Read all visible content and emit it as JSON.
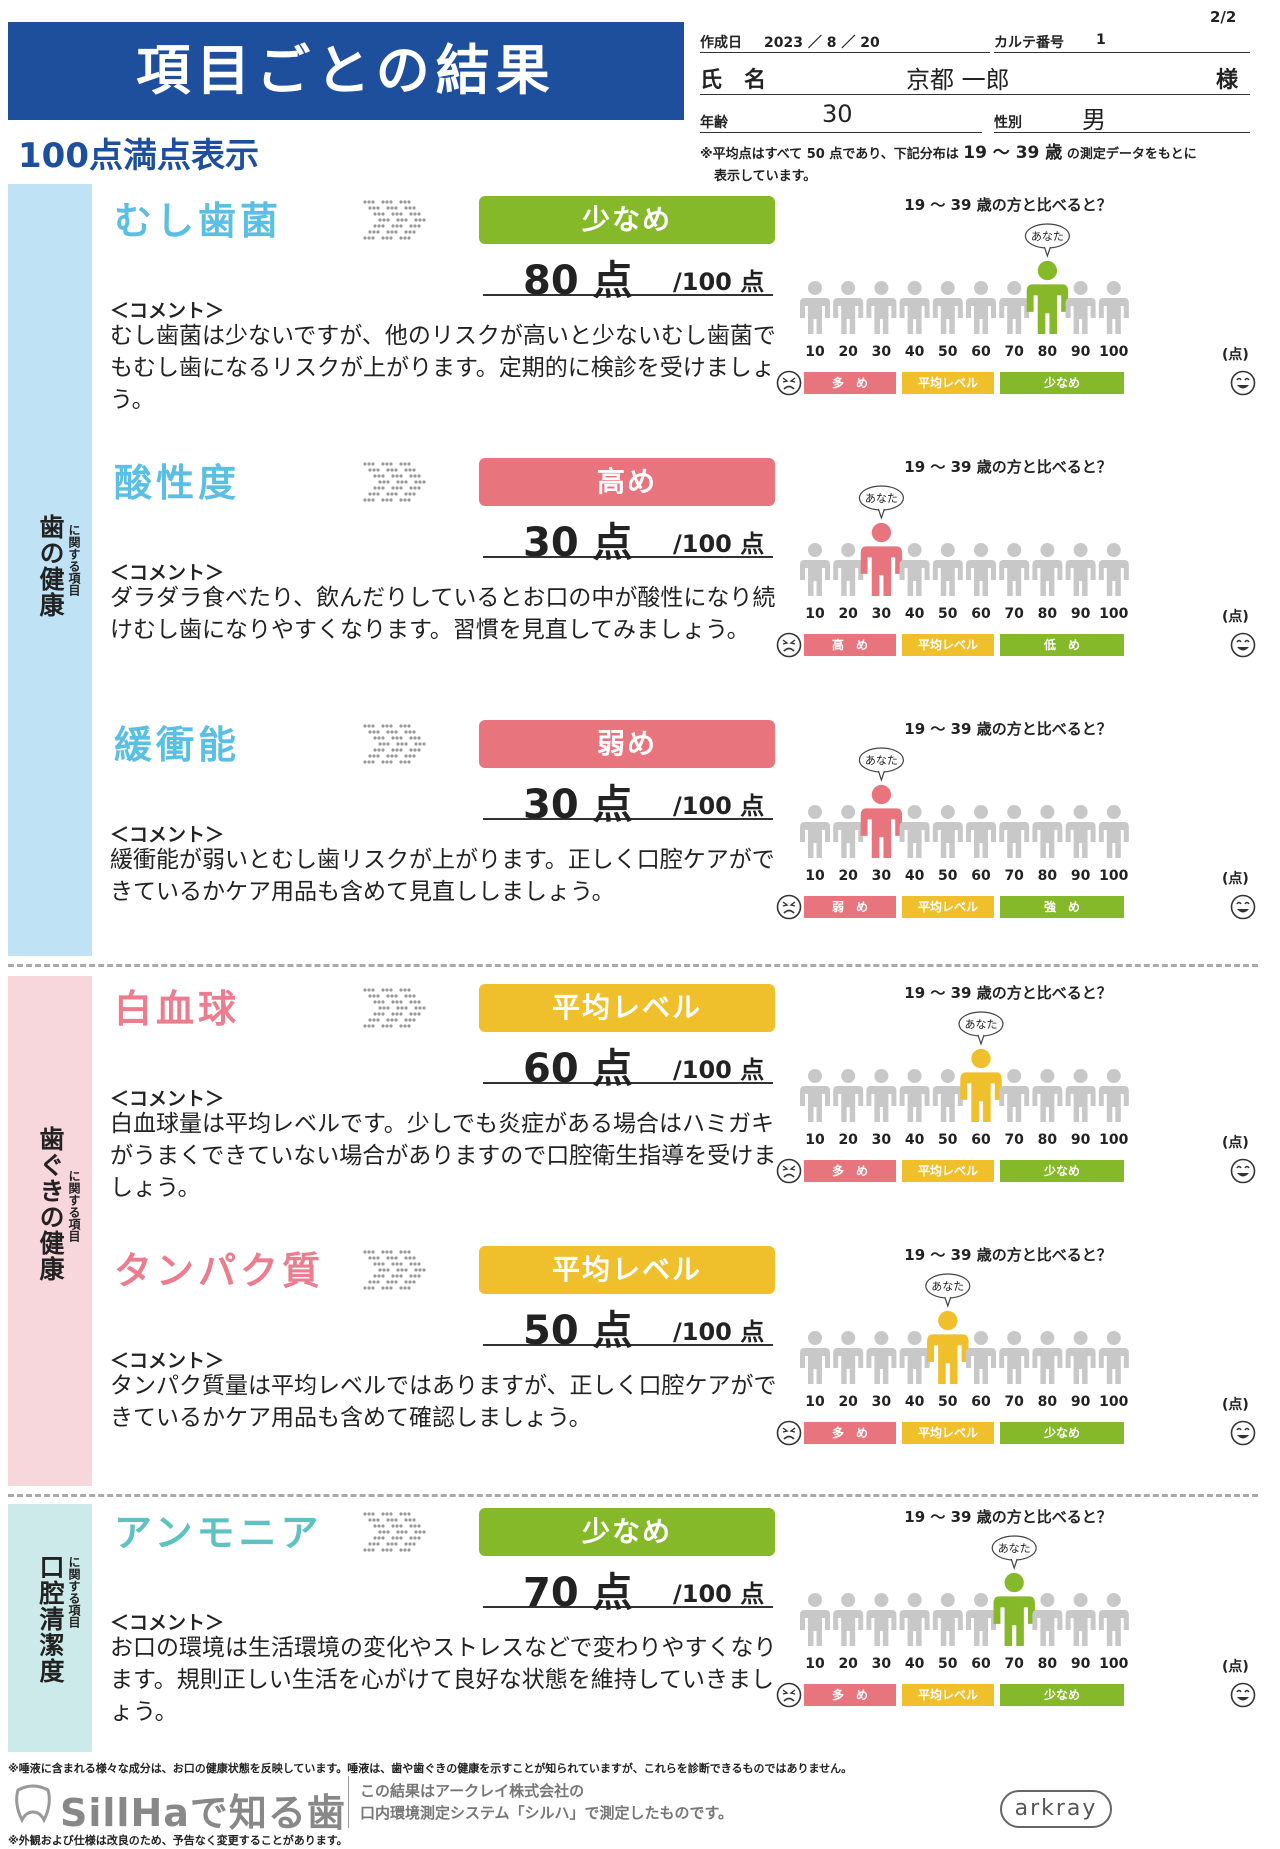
{
  "page_number": "2/2",
  "header": {
    "title": "項目ごとの結果",
    "subtitle": "100点満点表示",
    "created_label": "作成日",
    "created_date": "2023 ／ 8 ／ 20",
    "chart_no_label": "カルテ番号",
    "chart_no": "1",
    "name_label": "氏　名",
    "name": "京都 一郎",
    "honorific": "様",
    "age_label": "年齢",
    "age": "30",
    "sex_label": "性別",
    "sex": "男",
    "note_part1": "※平均点はすべて 50 点であり、下記分布は",
    "note_range": "19 〜 39 歳",
    "note_part2": "の測定データをもとに",
    "note_line2": "表示しています。"
  },
  "categories": [
    {
      "main": "歯の健康",
      "sub": "に関する項目",
      "color": "#bfe2f5"
    },
    {
      "main": "歯ぐきの健康",
      "sub": "に関する項目",
      "color": "#f7d6dc"
    },
    {
      "main": "口腔清潔度",
      "sub": "に関する項目",
      "color": "#cdeaea"
    }
  ],
  "common": {
    "chart_question": "19 〜 39 歳の方と比べると？",
    "you_label": "あなた",
    "score_unit": "/100 点",
    "comment_label": "＜コメント＞",
    "point_unit": "(点)",
    "ticks": [
      "10",
      "20",
      "30",
      "40",
      "50",
      "60",
      "70",
      "80",
      "90",
      "100"
    ],
    "middle_label": "平均レベル"
  },
  "sections": [
    {
      "name": "むし歯菌",
      "name_color": "#5bbfe3",
      "level": "少なめ",
      "level_color": "#86b929",
      "score": "80 点",
      "score_value": 80,
      "comment": "むし歯菌は少ないですが、他のリスクが高いと少ないむし歯菌でもむし歯になるリスクが上がります。定期的に検診を受けましょう。",
      "left_label": "多　め",
      "right_label": "少なめ"
    },
    {
      "name": "酸性度",
      "name_color": "#5bbfe3",
      "level": "高め",
      "level_color": "#e8757e",
      "score": "30 点",
      "score_value": 30,
      "comment": "ダラダラ食べたり、飲んだりしているとお口の中が酸性になり続けむし歯になりやすくなります。習慣を見直してみましょう。",
      "left_label": "高　め",
      "right_label": "低　め"
    },
    {
      "name": "緩衝能",
      "name_color": "#5bbfe3",
      "level": "弱め",
      "level_color": "#e8757e",
      "score": "30 点",
      "score_value": 30,
      "comment": "緩衝能が弱いとむし歯リスクが上がります。正しく口腔ケアができているかケア用品も含めて見直ししましょう。",
      "left_label": "弱　め",
      "right_label": "強　め"
    },
    {
      "name": "白血球",
      "name_color": "#ec7d8f",
      "level": "平均レベル",
      "level_color": "#efbf2c",
      "score": "60 点",
      "score_value": 60,
      "comment": "白血球量は平均レベルです。少しでも炎症がある場合はハミガキがうまくできていない場合がありますので口腔衛生指導を受けましょう。",
      "left_label": "多　め",
      "right_label": "少なめ"
    },
    {
      "name": "タンパク質",
      "name_color": "#ec7d8f",
      "level": "平均レベル",
      "level_color": "#efbf2c",
      "score": "50 点",
      "score_value": 50,
      "comment": "タンパク質量は平均レベルではありますが、正しく口腔ケアができているかケア用品も含めて確認しましょう。",
      "left_label": "多　め",
      "right_label": "少なめ"
    },
    {
      "name": "アンモニア",
      "name_color": "#5cc3c1",
      "level": "少なめ",
      "level_color": "#86b929",
      "score": "70 点",
      "score_value": 70,
      "comment": "お口の環境は生活環境の変化やストレスなどで変わりやすくなります。規則正しい生活を心がけて良好な状態を維持していきましょう。",
      "left_label": "多　め",
      "right_label": "少なめ"
    }
  ],
  "footer": {
    "note1": "※唾液に含まれる様々な成分は、お口の健康状態を反映しています。唾液は、歯や歯ぐきの健康を示すことが知られていますが、これらを診断できるものではありません。",
    "logo": "SillHaで知る歯",
    "desc1": "この結果はアークレイ株式会社の",
    "desc2": "口内環境測定システム「シルハ」で測定したものです。",
    "brand": "arkray",
    "note2": "※外観および仕様は改良のため、予告なく変更することがあります。"
  }
}
